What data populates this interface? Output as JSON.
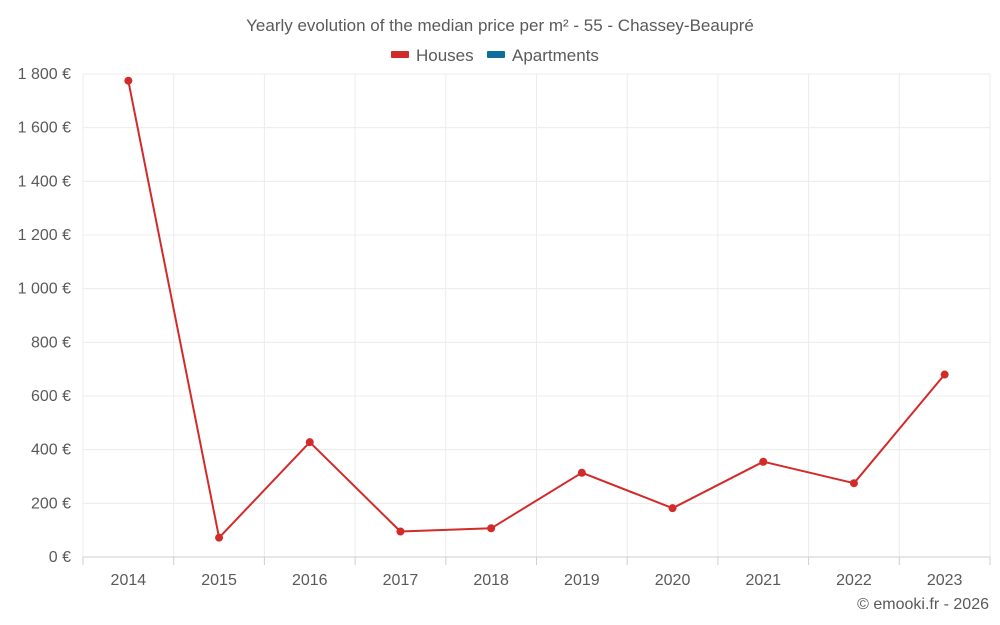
{
  "chart_data": {
    "type": "line",
    "title": "Yearly evolution of the median price per m² - 55 - Chassey-Beaupré",
    "categories": [
      "2014",
      "2015",
      "2016",
      "2017",
      "2018",
      "2019",
      "2020",
      "2021",
      "2022",
      "2023"
    ],
    "series": [
      {
        "name": "Houses",
        "color": "#d32a2a",
        "values": [
          1775,
          72,
          428,
          95,
          107,
          314,
          182,
          355,
          275,
          680
        ]
      },
      {
        "name": "Apartments",
        "color": "#0f6ea0",
        "values": [
          null,
          null,
          null,
          null,
          null,
          null,
          null,
          null,
          null,
          null
        ]
      }
    ],
    "ylim": [
      0,
      1800
    ],
    "yticks": [
      0,
      200,
      400,
      600,
      800,
      1000,
      1200,
      1400,
      1600,
      1800
    ],
    "ytick_labels": [
      "0 €",
      "200 €",
      "400 €",
      "600 €",
      "800 €",
      "1 000 €",
      "1 200 €",
      "1 400 €",
      "1 600 €",
      "1 800 €"
    ],
    "legend_position": "top-center",
    "grid": true,
    "credit": "© emooki.fr - 2026"
  }
}
